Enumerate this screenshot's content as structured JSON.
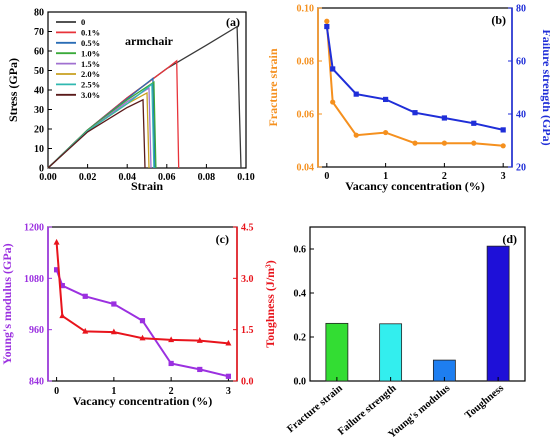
{
  "chart_data": [
    {
      "panel": "(a)",
      "type": "line",
      "xlabel": "Strain",
      "ylabel": "Stress (GPa)",
      "annotation": "armchair",
      "xlim": [
        0.0,
        0.1
      ],
      "ylim": [
        0,
        80
      ],
      "xticks": [
        "0.00",
        "0.02",
        "0.04",
        "0.06",
        "0.08",
        "0.10"
      ],
      "yticks": [
        "0",
        "10",
        "20",
        "30",
        "40",
        "50",
        "60",
        "70",
        "80"
      ],
      "legend_position": "top-left",
      "series": [
        {
          "name": "0",
          "color": "#3a3a3a",
          "points": [
            [
              0,
              0
            ],
            [
              0.02,
              19.5
            ],
            [
              0.04,
              36
            ],
            [
              0.06,
              51
            ],
            [
              0.08,
              63
            ],
            [
              0.0955,
              72.5
            ],
            [
              0.0975,
              0
            ]
          ]
        },
        {
          "name": "0.1%",
          "color": "#e8333a",
          "points": [
            [
              0,
              0
            ],
            [
              0.02,
              19.5
            ],
            [
              0.04,
              36
            ],
            [
              0.06,
              51
            ],
            [
              0.065,
              55
            ],
            [
              0.066,
              0
            ]
          ]
        },
        {
          "name": "0.5%",
          "color": "#2a6db5",
          "points": [
            [
              0,
              0
            ],
            [
              0.02,
              19.5
            ],
            [
              0.04,
              35.5
            ],
            [
              0.053,
              46
            ],
            [
              0.054,
              0
            ]
          ]
        },
        {
          "name": "1.0%",
          "color": "#3aaa3a",
          "points": [
            [
              0,
              0
            ],
            [
              0.02,
              19.5
            ],
            [
              0.04,
              35
            ],
            [
              0.0535,
              44
            ],
            [
              0.0545,
              0
            ]
          ]
        },
        {
          "name": "1.5%",
          "color": "#a070d0",
          "points": [
            [
              0,
              0
            ],
            [
              0.02,
              19
            ],
            [
              0.04,
              34
            ],
            [
              0.051,
              41
            ],
            [
              0.052,
              0
            ]
          ]
        },
        {
          "name": "2.0%",
          "color": "#c8a020",
          "points": [
            [
              0,
              0
            ],
            [
              0.02,
              19
            ],
            [
              0.04,
              33
            ],
            [
              0.05,
              38.5
            ],
            [
              0.051,
              0
            ]
          ]
        },
        {
          "name": "2.5%",
          "color": "#30b8b0",
          "points": [
            [
              0,
              0
            ],
            [
              0.02,
              19
            ],
            [
              0.04,
              33
            ],
            [
              0.0525,
              43
            ],
            [
              0.0535,
              0
            ]
          ]
        },
        {
          "name": "3.0%",
          "color": "#5a1a1a",
          "points": [
            [
              0,
              0
            ],
            [
              0.02,
              18.5
            ],
            [
              0.04,
              31
            ],
            [
              0.048,
              35
            ],
            [
              0.049,
              0
            ]
          ]
        }
      ]
    },
    {
      "panel": "(b)",
      "type": "line",
      "xlabel": "Vacancy concentration (%)",
      "ylabel_left": "Fracture strain",
      "ylabel_right": "Failure strength (GPa)",
      "xlim": [
        -0.15,
        3.15
      ],
      "ylim_left": [
        0.04,
        0.1
      ],
      "ylim_right": [
        20,
        80
      ],
      "xticks": [
        "0",
        "1",
        "2",
        "3"
      ],
      "yticks_left": [
        "0.04",
        "0.06",
        "0.08",
        "0.10"
      ],
      "yticks_right": [
        "20",
        "40",
        "60",
        "80"
      ],
      "series": [
        {
          "name": "Fracture strain",
          "axis": "left",
          "color": "#f5901e",
          "x": [
            0,
            0.1,
            0.5,
            1.0,
            1.5,
            2.0,
            2.5,
            3.0
          ],
          "values": [
            0.095,
            0.0645,
            0.052,
            0.053,
            0.049,
            0.049,
            0.049,
            0.048
          ]
        },
        {
          "name": "Failure strength",
          "axis": "right",
          "color": "#1f2ed8",
          "x": [
            0,
            0.1,
            0.5,
            1.0,
            1.5,
            2.0,
            2.5,
            3.0
          ],
          "values": [
            73,
            57,
            47.5,
            45.5,
            40.5,
            38.5,
            36.5,
            34
          ]
        }
      ]
    },
    {
      "panel": "(c)",
      "type": "line",
      "xlabel": "Vacancy concentration (%)",
      "ylabel_left": "Young's modulus (GPa)",
      "ylabel_right": "Toughness (J/m³)",
      "xlim": [
        -0.15,
        3.15
      ],
      "ylim_left": [
        840,
        1200
      ],
      "ylim_right": [
        0,
        4.5
      ],
      "xticks": [
        "0",
        "1",
        "2",
        "3"
      ],
      "yticks_left": [
        "840",
        "960",
        "1080",
        "1200"
      ],
      "yticks_right": [
        "0.0",
        "1.5",
        "3.0",
        "4.5"
      ],
      "series": [
        {
          "name": "Young's modulus",
          "axis": "left",
          "color": "#9b30e0",
          "x": [
            0,
            0.1,
            0.5,
            1.0,
            1.5,
            2.0,
            2.5,
            3.0
          ],
          "values": [
            1100,
            1063,
            1038,
            1020,
            981,
            881,
            867,
            851
          ]
        },
        {
          "name": "Toughness",
          "axis": "right",
          "color": "#e8141c",
          "x": [
            0,
            0.1,
            0.5,
            1.0,
            1.5,
            2.0,
            2.5,
            3.0
          ],
          "values": [
            4.05,
            1.9,
            1.45,
            1.43,
            1.25,
            1.2,
            1.18,
            1.1
          ]
        }
      ]
    },
    {
      "panel": "(d)",
      "type": "bar",
      "categories": [
        "Fracture strain",
        "Failure strength",
        "Young's modulus",
        "Toughness"
      ],
      "values": [
        0.262,
        0.26,
        0.095,
        0.613
      ],
      "colors": [
        "#33dd33",
        "#33eeee",
        "#1e7ef0",
        "#1e10d8"
      ],
      "ylim": [
        0,
        0.7
      ],
      "yticks": [
        "0.0",
        "0.2",
        "0.4",
        "0.6"
      ]
    }
  ]
}
